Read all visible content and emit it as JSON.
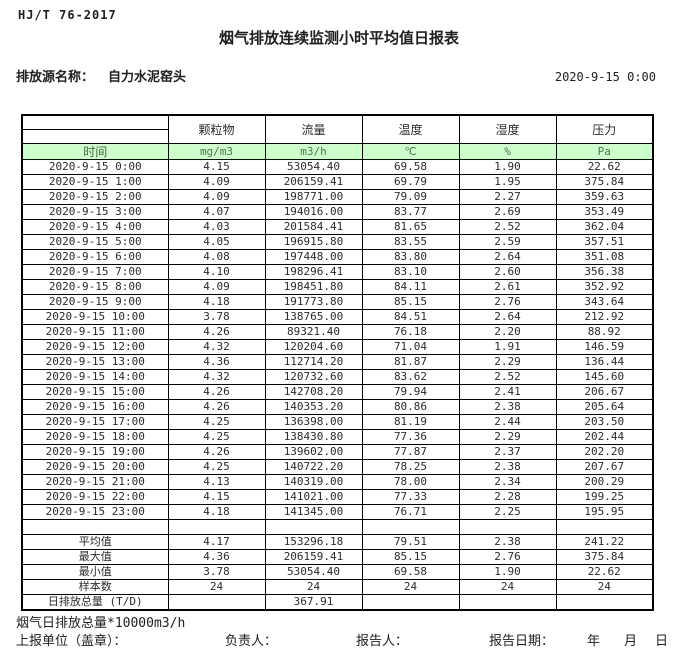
{
  "page": {
    "standard": "HJ/T  76-2017",
    "title": "烟气排放连续监测小时平均值日报表",
    "source_label": "排放源名称：",
    "source_name": "自力水泥窑头",
    "report_datetime": "2020-9-15 0:00"
  },
  "table": {
    "time_header": "时间",
    "pollutant_headers": [
      "颗粒物",
      "流量",
      "温度",
      "湿度",
      "压力"
    ],
    "units": [
      "mg/m3",
      "m3/h",
      "℃",
      "%",
      "Pa"
    ],
    "rows": [
      {
        "time": "2020-9-15 0:00",
        "values": [
          "4.15",
          "53054.40",
          "69.58",
          "1.90",
          "22.62"
        ]
      },
      {
        "time": "2020-9-15 1:00",
        "values": [
          "4.09",
          "206159.41",
          "69.79",
          "1.95",
          "375.84"
        ]
      },
      {
        "time": "2020-9-15 2:00",
        "values": [
          "4.09",
          "198771.00",
          "79.09",
          "2.27",
          "359.63"
        ]
      },
      {
        "time": "2020-9-15 3:00",
        "values": [
          "4.07",
          "194016.00",
          "83.77",
          "2.69",
          "353.49"
        ]
      },
      {
        "time": "2020-9-15 4:00",
        "values": [
          "4.03",
          "201584.41",
          "81.65",
          "2.52",
          "362.04"
        ]
      },
      {
        "time": "2020-9-15 5:00",
        "values": [
          "4.05",
          "196915.80",
          "83.55",
          "2.59",
          "357.51"
        ]
      },
      {
        "time": "2020-9-15 6:00",
        "values": [
          "4.08",
          "197448.00",
          "83.80",
          "2.64",
          "351.08"
        ]
      },
      {
        "time": "2020-9-15 7:00",
        "values": [
          "4.10",
          "198296.41",
          "83.10",
          "2.60",
          "356.38"
        ]
      },
      {
        "time": "2020-9-15 8:00",
        "values": [
          "4.09",
          "198451.80",
          "84.11",
          "2.61",
          "352.92"
        ]
      },
      {
        "time": "2020-9-15 9:00",
        "values": [
          "4.18",
          "191773.80",
          "85.15",
          "2.76",
          "343.64"
        ]
      },
      {
        "time": "2020-9-15 10:00",
        "values": [
          "3.78",
          "138765.00",
          "84.51",
          "2.64",
          "212.92"
        ]
      },
      {
        "time": "2020-9-15 11:00",
        "values": [
          "4.26",
          "89321.40",
          "76.18",
          "2.20",
          "88.92"
        ]
      },
      {
        "time": "2020-9-15 12:00",
        "values": [
          "4.32",
          "120204.60",
          "71.04",
          "1.91",
          "146.59"
        ]
      },
      {
        "time": "2020-9-15 13:00",
        "values": [
          "4.36",
          "112714.20",
          "81.87",
          "2.29",
          "136.44"
        ]
      },
      {
        "time": "2020-9-15 14:00",
        "values": [
          "4.32",
          "120732.60",
          "83.62",
          "2.52",
          "145.60"
        ]
      },
      {
        "time": "2020-9-15 15:00",
        "values": [
          "4.26",
          "142708.20",
          "79.94",
          "2.41",
          "206.67"
        ]
      },
      {
        "time": "2020-9-15 16:00",
        "values": [
          "4.26",
          "140353.20",
          "80.86",
          "2.38",
          "205.64"
        ]
      },
      {
        "time": "2020-9-15 17:00",
        "values": [
          "4.25",
          "136398.00",
          "81.19",
          "2.44",
          "203.50"
        ]
      },
      {
        "time": "2020-9-15 18:00",
        "values": [
          "4.25",
          "138430.80",
          "77.36",
          "2.29",
          "202.44"
        ]
      },
      {
        "time": "2020-9-15 19:00",
        "values": [
          "4.26",
          "139602.00",
          "77.87",
          "2.37",
          "202.20"
        ]
      },
      {
        "time": "2020-9-15 20:00",
        "values": [
          "4.25",
          "140722.20",
          "78.25",
          "2.38",
          "207.67"
        ]
      },
      {
        "time": "2020-9-15 21:00",
        "values": [
          "4.13",
          "140319.00",
          "78.00",
          "2.34",
          "200.29"
        ]
      },
      {
        "time": "2020-9-15 22:00",
        "values": [
          "4.15",
          "141021.00",
          "77.33",
          "2.28",
          "199.25"
        ]
      },
      {
        "time": "2020-9-15 23:00",
        "values": [
          "4.18",
          "141345.00",
          "76.71",
          "2.25",
          "195.95"
        ]
      }
    ],
    "summary": [
      {
        "label": "平均值",
        "values": [
          "4.17",
          "153296.18",
          "79.51",
          "2.38",
          "241.22"
        ]
      },
      {
        "label": "最大值",
        "values": [
          "4.36",
          "206159.41",
          "85.15",
          "2.76",
          "375.84"
        ]
      },
      {
        "label": "最小值",
        "values": [
          "3.78",
          "53054.40",
          "69.58",
          "1.90",
          "22.62"
        ]
      },
      {
        "label": "样本数",
        "values": [
          "24",
          "24",
          "24",
          "24",
          "24"
        ]
      },
      {
        "label": "日排放总量 (T/D)",
        "values": [
          "",
          "367.91",
          "",
          "",
          ""
        ]
      }
    ]
  },
  "footer": {
    "note": "烟气日排放总量*10000m3/h",
    "unit_label": "上报单位（盖章）：",
    "responsible_label": "负责人：",
    "reporter_label": "报告人：",
    "report_date_label": "报告日期：",
    "year_label": "年",
    "month_label": "月",
    "day_label": "日"
  },
  "colors": {
    "header_green_bg": "#ccffcc",
    "header_green_text": "#5a6b5a",
    "border": "#000000",
    "text": "#202020"
  }
}
